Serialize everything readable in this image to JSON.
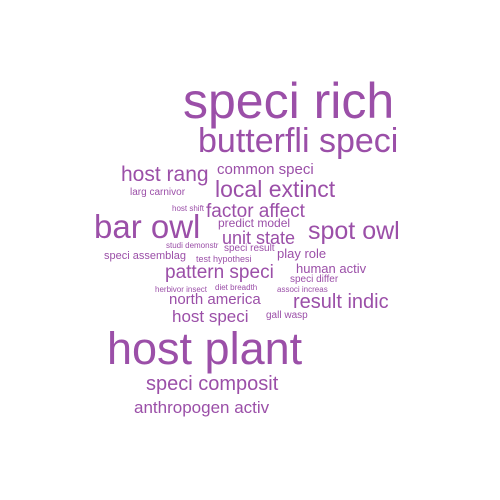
{
  "colors": {
    "word": "#9b4fa8",
    "background": "#ffffff"
  },
  "words": [
    {
      "id": "speci-rich",
      "text": "speci rich"
    },
    {
      "id": "butterfli-speci",
      "text": "butterfli speci"
    },
    {
      "id": "host-rang",
      "text": "host rang"
    },
    {
      "id": "common-speci",
      "text": "common speci"
    },
    {
      "id": "larg-carnivor",
      "text": "larg carnivor"
    },
    {
      "id": "local-extinct",
      "text": "local extinct"
    },
    {
      "id": "host-shift",
      "text": "host shift"
    },
    {
      "id": "factor-affect",
      "text": "factor affect"
    },
    {
      "id": "bar-owl",
      "text": "bar owl"
    },
    {
      "id": "predict-model",
      "text": "predict model"
    },
    {
      "id": "spot-owl",
      "text": "spot owl"
    },
    {
      "id": "unit-state",
      "text": "unit state"
    },
    {
      "id": "studi-demonstr",
      "text": "studi demonstr"
    },
    {
      "id": "speci-result",
      "text": "speci result"
    },
    {
      "id": "speci-assemblag",
      "text": "speci assemblag"
    },
    {
      "id": "test-hypothesi",
      "text": "test hypothesi"
    },
    {
      "id": "play-role",
      "text": "play role"
    },
    {
      "id": "pattern-speci",
      "text": "pattern speci"
    },
    {
      "id": "human-activ",
      "text": "human activ"
    },
    {
      "id": "speci-differ",
      "text": "speci differ"
    },
    {
      "id": "herbivor-insect",
      "text": "herbivor insect"
    },
    {
      "id": "diet-breadth",
      "text": "diet breadth"
    },
    {
      "id": "associ-increas",
      "text": "associ increas"
    },
    {
      "id": "north-america",
      "text": "north america"
    },
    {
      "id": "result-indic",
      "text": "result indic"
    },
    {
      "id": "host-speci",
      "text": "host speci"
    },
    {
      "id": "gall-wasp",
      "text": "gall wasp"
    },
    {
      "id": "host-plant",
      "text": "host plant"
    },
    {
      "id": "speci-composit",
      "text": "speci composit"
    },
    {
      "id": "anthropogen-activ",
      "text": "anthropogen activ"
    }
  ]
}
